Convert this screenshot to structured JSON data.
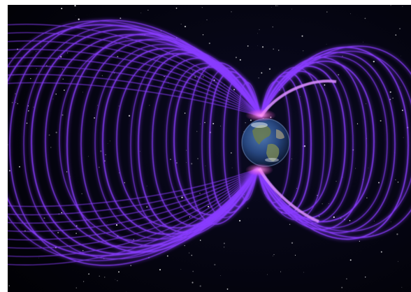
{
  "scene": {
    "subject": "earth-magnetosphere",
    "colors": {
      "space": "#020208",
      "field_line": "#8a3cff",
      "field_core": "#d68bff",
      "pole_glow": "#ff4fd8",
      "ocean": "#1c3f7a",
      "land": "#7a8a5a"
    }
  }
}
